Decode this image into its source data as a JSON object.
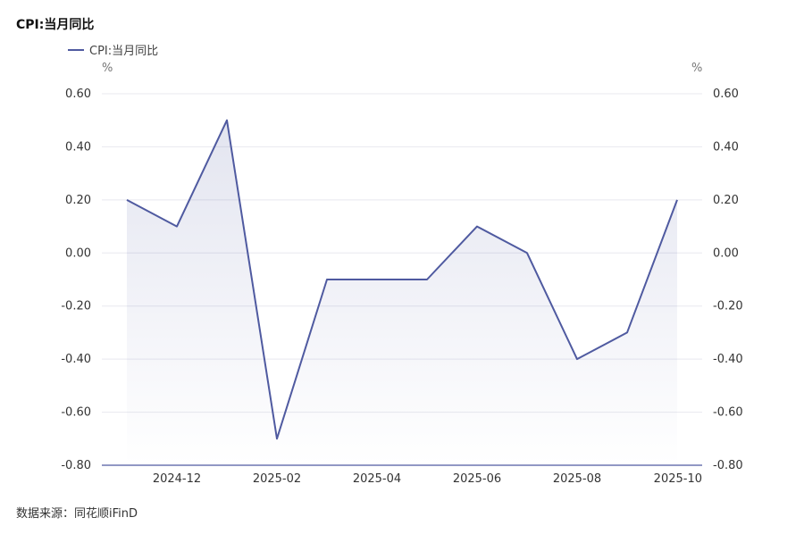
{
  "title": "CPI:当月同比",
  "legend": "CPI:当月同比",
  "unit_left": "%",
  "unit_right": "%",
  "source": "数据来源：同花顺iFinD",
  "colors": {
    "line": "#4f5aa0",
    "grid": "#e8e8ef",
    "axis": "#4f5aa0"
  },
  "chart_data": {
    "type": "area",
    "title": "CPI:当月同比",
    "series": [
      {
        "name": "CPI:当月同比",
        "values": [
          0.2,
          0.1,
          0.5,
          -0.7,
          -0.1,
          -0.1,
          -0.1,
          0.1,
          0.0,
          -0.4,
          -0.3,
          0.2
        ]
      }
    ],
    "x": [
      "2024-11",
      "2024-12",
      "2025-01",
      "2025-02",
      "2025-03",
      "2025-04",
      "2025-05",
      "2025-06",
      "2025-07",
      "2025-08",
      "2025-09",
      "2025-10"
    ],
    "x_tick_labels": [
      "2024-12",
      "2025-02",
      "2025-04",
      "2025-06",
      "2025-08",
      "2025-10"
    ],
    "y_ticks": [
      "0.60",
      "0.40",
      "0.20",
      "0.00",
      "-0.20",
      "-0.40",
      "-0.60",
      "-0.80"
    ],
    "ylim": [
      -0.8,
      0.6
    ],
    "grid": true,
    "legend_position": "top-left"
  }
}
